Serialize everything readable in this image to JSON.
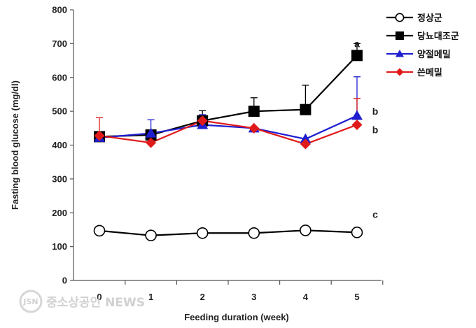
{
  "watermark": {
    "text": "중소상공인 NEWS",
    "logo_text": "JSN"
  },
  "chart_data": {
    "type": "line",
    "x": [
      0,
      1,
      2,
      3,
      4,
      5
    ],
    "x_tick_labels": [
      "0",
      "1",
      "2",
      "3",
      "4",
      "5"
    ],
    "xlabel": "Feeding duration (week)",
    "ylabel": "Fasting blood glucose (mg/dl)",
    "ylim": [
      0,
      800
    ],
    "y_ticks": [
      0,
      100,
      200,
      300,
      400,
      500,
      600,
      700,
      800
    ],
    "grid": false,
    "legend_position": "top-right",
    "series": [
      {
        "name": "정상군",
        "color": "#000000",
        "marker": "circle-open",
        "values": [
          147,
          133,
          140,
          140,
          148,
          142
        ],
        "errors": [
          0,
          0,
          0,
          0,
          0,
          0
        ]
      },
      {
        "name": "당뇨대조군",
        "color": "#000000",
        "marker": "square",
        "values": [
          425,
          430,
          472,
          500,
          505,
          665
        ],
        "errors": [
          0,
          0,
          30,
          40,
          72,
          35
        ]
      },
      {
        "name": "양절메밀",
        "color": "#1f1fd1",
        "marker": "triangle",
        "values": [
          422,
          435,
          460,
          450,
          418,
          487
        ],
        "errors": [
          0,
          40,
          30,
          0,
          0,
          115
        ]
      },
      {
        "name": "쓴메밀",
        "color": "#e01a1a",
        "marker": "diamond",
        "values": [
          428,
          407,
          472,
          450,
          403,
          460
        ],
        "errors": [
          53,
          0,
          0,
          0,
          0,
          78
        ]
      }
    ],
    "annotations": [
      {
        "text": "a",
        "x": 5,
        "y": 700
      },
      {
        "text": "b",
        "x": 5,
        "y": 500
      },
      {
        "text": "b",
        "x": 5,
        "y": 445
      },
      {
        "text": "c",
        "x": 5,
        "y": 195
      }
    ]
  }
}
